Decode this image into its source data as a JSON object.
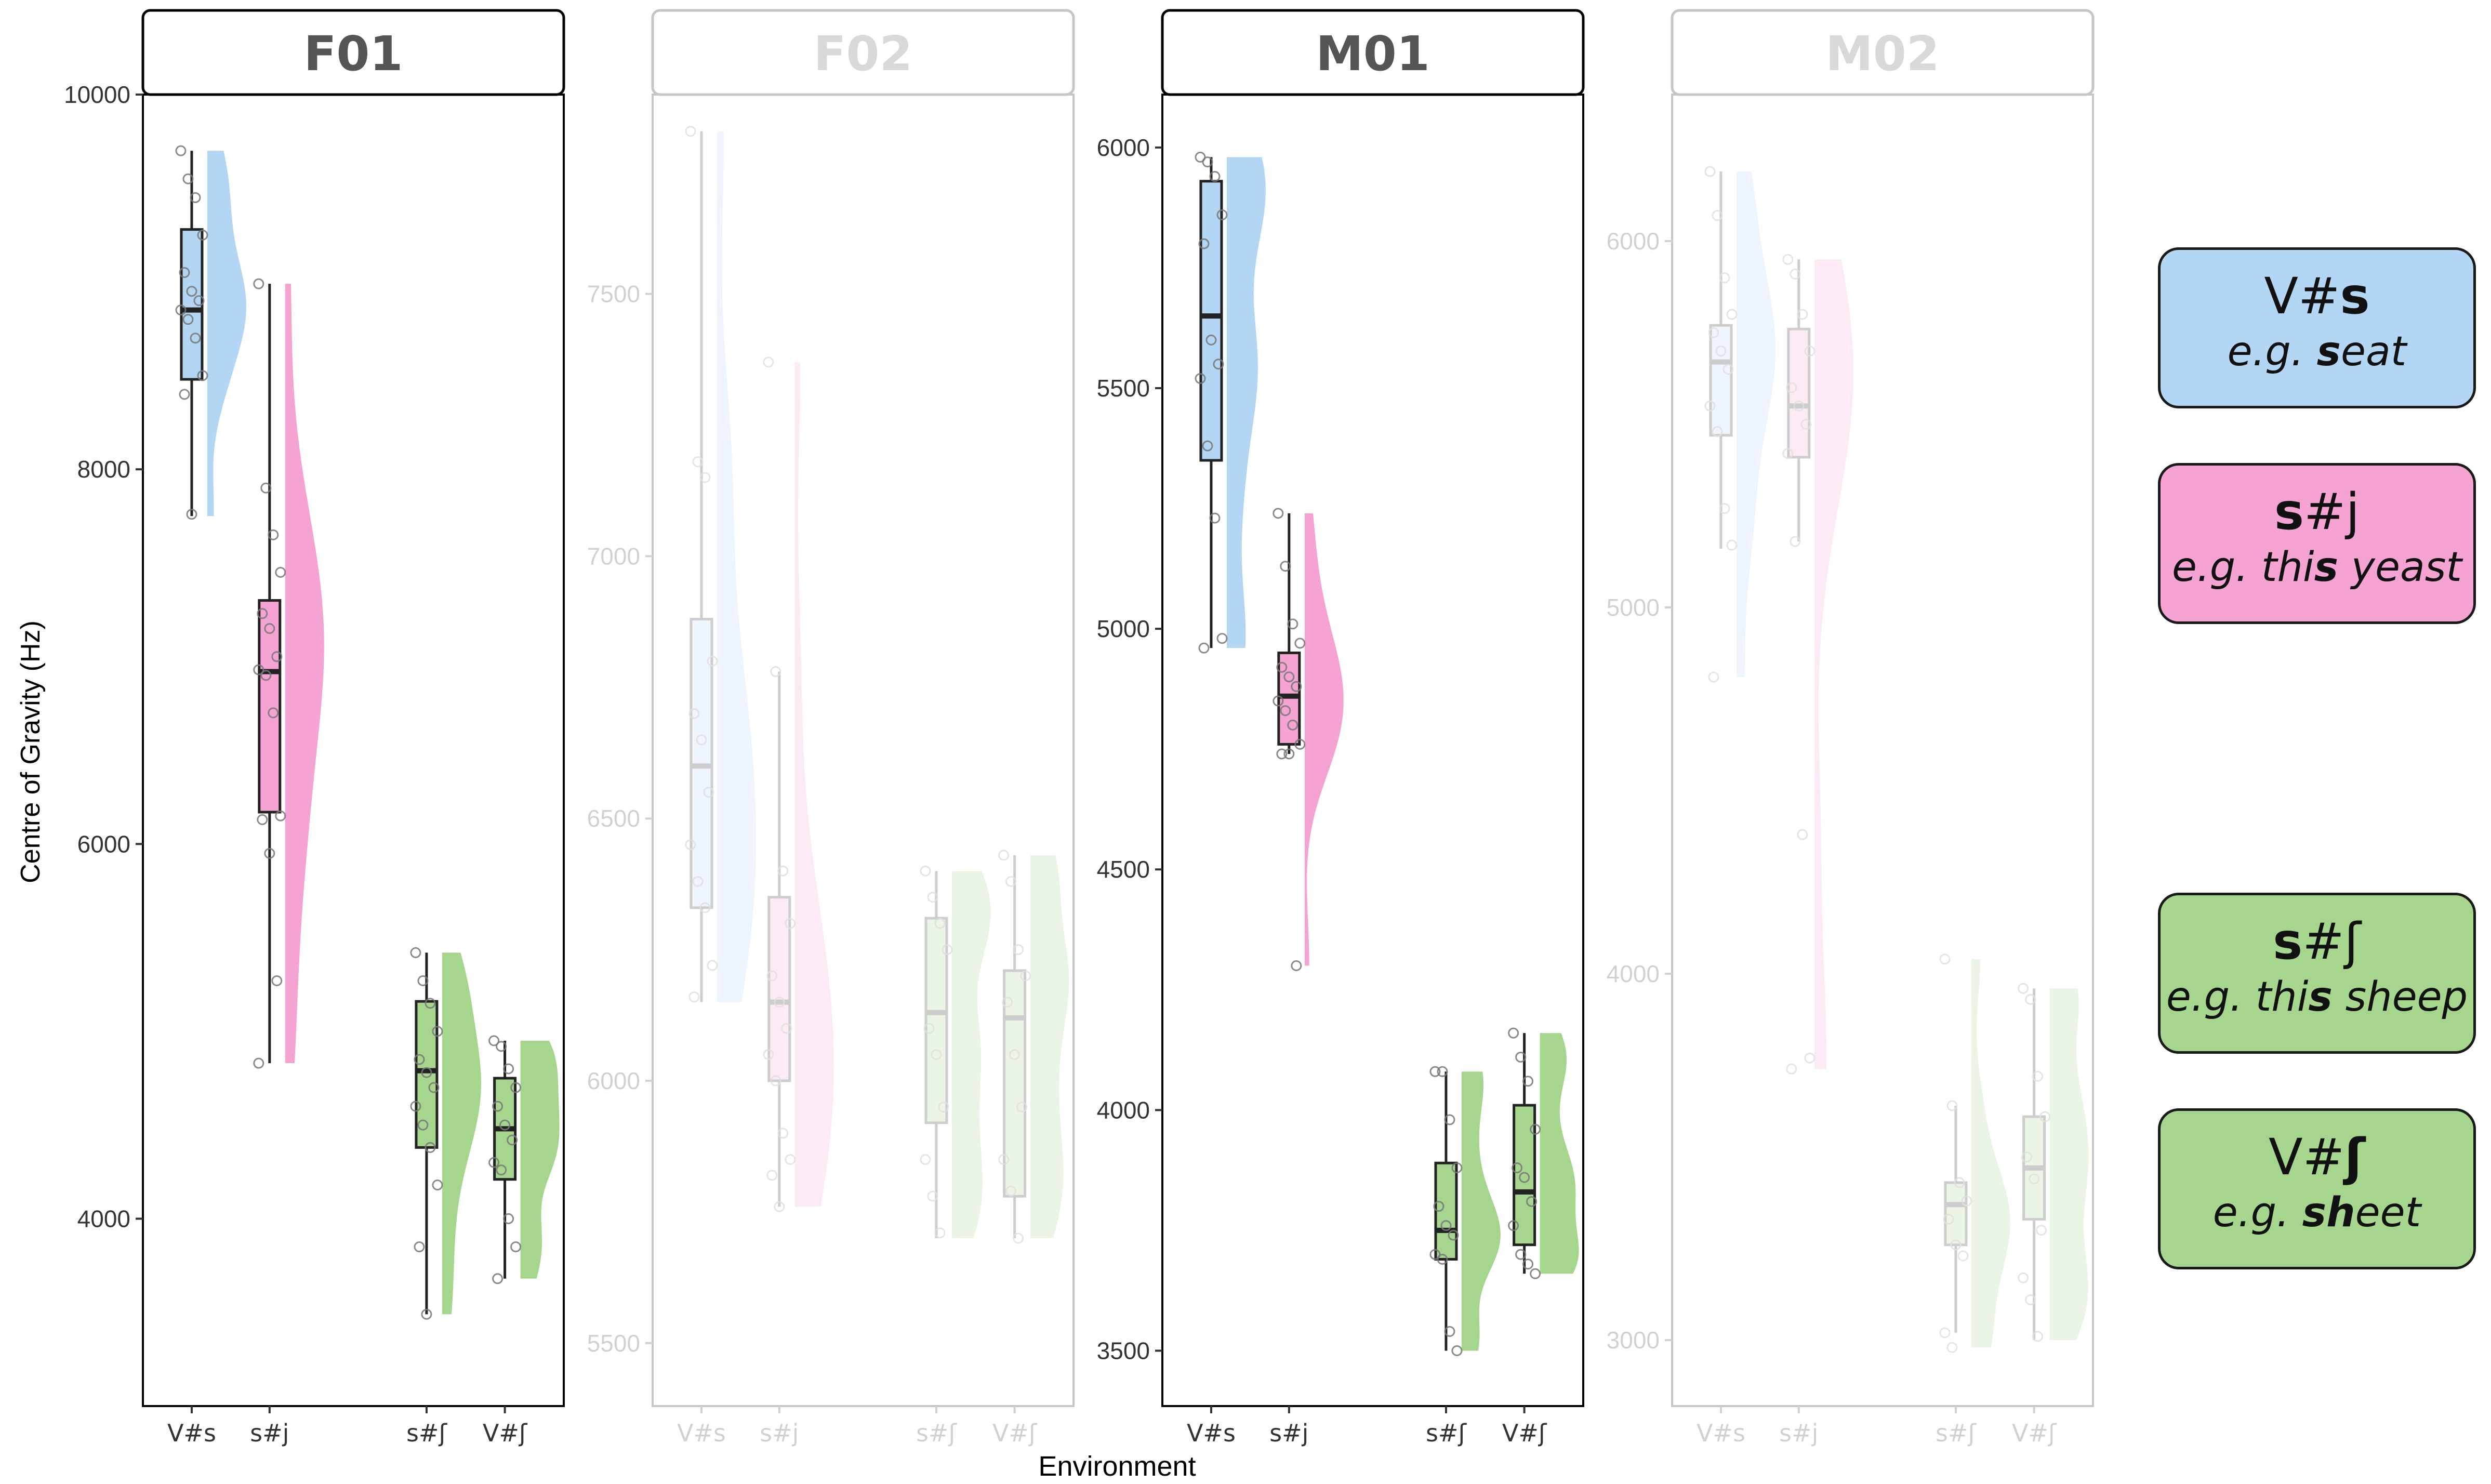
{
  "chart_data": {
    "type": "boxplot-raincloud",
    "ylabel": "Centre of Gravity (Hz)",
    "xlabel": "Environment",
    "categories": [
      "V#s",
      "s#j",
      "s#ʃ",
      "V#ʃ"
    ],
    "colors": {
      "V#s": "#b3d6f5",
      "s#j": "#f4a3d2",
      "s#ʃ": "#a6d68d",
      "V#ʃ": "#a6d68d"
    },
    "panels": [
      {
        "name": "F01",
        "highlighted": true,
        "ylim": [
          3000,
          10000
        ],
        "yticks": [
          4000,
          6000,
          8000,
          10000
        ],
        "boxes": [
          {
            "category": "V#s",
            "min": 7750,
            "q1": 8480,
            "median": 8850,
            "q3": 9280,
            "max": 9700,
            "points": [
              9700,
              9550,
              9450,
              9250,
              9050,
              8950,
              8900,
              8850,
              8800,
              8700,
              8500,
              8400,
              7760
            ]
          },
          {
            "category": "s#j",
            "min": 4830,
            "q1": 6170,
            "median": 6920,
            "q3": 7300,
            "max": 8990,
            "points": [
              8990,
              7900,
              7650,
              7450,
              7230,
              7150,
              7000,
              6930,
              6900,
              6700,
              6150,
              6130,
              5950,
              5270,
              4830
            ]
          },
          {
            "category": "s#ʃ",
            "min": 3490,
            "q1": 4380,
            "median": 4790,
            "q3": 5160,
            "max": 5420,
            "points": [
              5420,
              5270,
              5150,
              5000,
              4850,
              4780,
              4700,
              4600,
              4500,
              4380,
              4180,
              3850,
              3490
            ]
          },
          {
            "category": "V#ʃ",
            "min": 3680,
            "q1": 4210,
            "median": 4480,
            "q3": 4750,
            "max": 4950,
            "points": [
              4950,
              4920,
              4800,
              4700,
              4600,
              4500,
              4420,
              4300,
              4260,
              4000,
              3850,
              3680
            ]
          }
        ]
      },
      {
        "name": "F02",
        "highlighted": false,
        "ylim": [
          5380,
          7880
        ],
        "yticks": [
          5500,
          6000,
          6500,
          7000,
          7500
        ],
        "boxes": [
          {
            "category": "V#s",
            "min": 6150,
            "q1": 6330,
            "median": 6600,
            "q3": 6880,
            "max": 7810,
            "points": [
              7810,
              7180,
              7150,
              6800,
              6700,
              6650,
              6550,
              6450,
              6380,
              6330,
              6220,
              6160
            ]
          },
          {
            "category": "s#j",
            "min": 5760,
            "q1": 6000,
            "median": 6150,
            "q3": 6350,
            "max": 6780,
            "points": [
              7370,
              6780,
              6400,
              6300,
              6200,
              6150,
              6100,
              6050,
              6000,
              5900,
              5850,
              5820,
              5760
            ]
          },
          {
            "category": "s#ʃ",
            "min": 5700,
            "q1": 5920,
            "median": 6130,
            "q3": 6310,
            "max": 6400,
            "points": [
              6400,
              6350,
              6300,
              6250,
              6100,
              6050,
              5950,
              5850,
              5780,
              5710
            ]
          },
          {
            "category": "V#ʃ",
            "min": 5700,
            "q1": 5780,
            "median": 6120,
            "q3": 6210,
            "max": 6430,
            "points": [
              6430,
              6380,
              6250,
              6200,
              6150,
              6050,
              5950,
              5850,
              5790,
              5700
            ]
          }
        ]
      },
      {
        "name": "M01",
        "highlighted": true,
        "ylim": [
          3385,
          6110
        ],
        "yticks": [
          3500,
          4000,
          4500,
          5000,
          5500,
          6000
        ],
        "boxes": [
          {
            "category": "V#s",
            "min": 4960,
            "q1": 5350,
            "median": 5650,
            "q3": 5930,
            "max": 5980,
            "points": [
              5980,
              5970,
              5940,
              5860,
              5800,
              5600,
              5550,
              5520,
              5380,
              5230,
              4980,
              4960
            ]
          },
          {
            "category": "s#j",
            "min": 4740,
            "q1": 4760,
            "median": 4860,
            "q3": 4950,
            "max": 5240,
            "points": [
              5240,
              5130,
              5010,
              4970,
              4920,
              4900,
              4880,
              4850,
              4830,
              4800,
              4760,
              4740,
              4740,
              4300
            ]
          },
          {
            "category": "s#ʃ",
            "min": 3500,
            "q1": 3690,
            "median": 3750,
            "q3": 3890,
            "max": 4080,
            "points": [
              4080,
              4080,
              3980,
              3880,
              3800,
              3760,
              3740,
              3700,
              3690,
              3540,
              3500
            ]
          },
          {
            "category": "V#ʃ",
            "min": 3660,
            "q1": 3720,
            "median": 3830,
            "q3": 4010,
            "max": 4160,
            "points": [
              4160,
              4110,
              4060,
              3960,
              3880,
              3860,
              3810,
              3760,
              3700,
              3680,
              3660
            ]
          }
        ]
      },
      {
        "name": "M02",
        "highlighted": false,
        "ylim": [
          2820,
          6400
        ],
        "yticks": [
          3000,
          4000,
          5000,
          6000
        ],
        "boxes": [
          {
            "category": "V#s",
            "min": 5160,
            "q1": 5470,
            "median": 5670,
            "q3": 5770,
            "max": 6190,
            "points": [
              6190,
              6070,
              5900,
              5800,
              5750,
              5700,
              5650,
              5550,
              5480,
              5270,
              5170,
              4810
            ]
          },
          {
            "category": "s#j",
            "min": 5180,
            "q1": 5410,
            "median": 5550,
            "q3": 5760,
            "max": 5950,
            "points": [
              5950,
              5910,
              5800,
              5700,
              5600,
              5550,
              5500,
              5420,
              5180,
              4380,
              3770,
              3740
            ]
          },
          {
            "category": "s#ʃ",
            "min": 3020,
            "q1": 3260,
            "median": 3370,
            "q3": 3430,
            "max": 3640,
            "points": [
              4040,
              3640,
              3430,
              3380,
              3330,
              3260,
              3230,
              3020,
              2980
            ]
          },
          {
            "category": "V#ʃ",
            "min": 3000,
            "q1": 3330,
            "median": 3470,
            "q3": 3610,
            "max": 3960,
            "points": [
              3960,
              3930,
              3720,
              3610,
              3500,
              3440,
              3300,
              3170,
              3110,
              3010
            ]
          }
        ]
      }
    ]
  },
  "legend": [
    {
      "line1_plain": "V#",
      "line1_bold": "s",
      "line1_tail": "",
      "line2_pre": "e.g. ",
      "line2_bold": "s",
      "line2_post": "eat",
      "color": "#b3d6f5"
    },
    {
      "line1_plain": "",
      "line1_bold": "s",
      "line1_tail": "#j",
      "line2_pre": "e.g. thi",
      "line2_bold": "s",
      "line2_post": " yeast",
      "color": "#f4a3d2"
    },
    {
      "line1_plain": "",
      "line1_bold": "s",
      "line1_tail": "#ʃ",
      "line2_pre": "e.g. thi",
      "line2_bold": "s",
      "line2_post": " sheep",
      "color": "#a6d68d"
    },
    {
      "line1_plain": "V#",
      "line1_bold": "ʃ",
      "line1_tail": "",
      "line2_pre": "e.g. ",
      "line2_bold": "sh",
      "line2_post": "eet",
      "color": "#a6d68d"
    }
  ]
}
